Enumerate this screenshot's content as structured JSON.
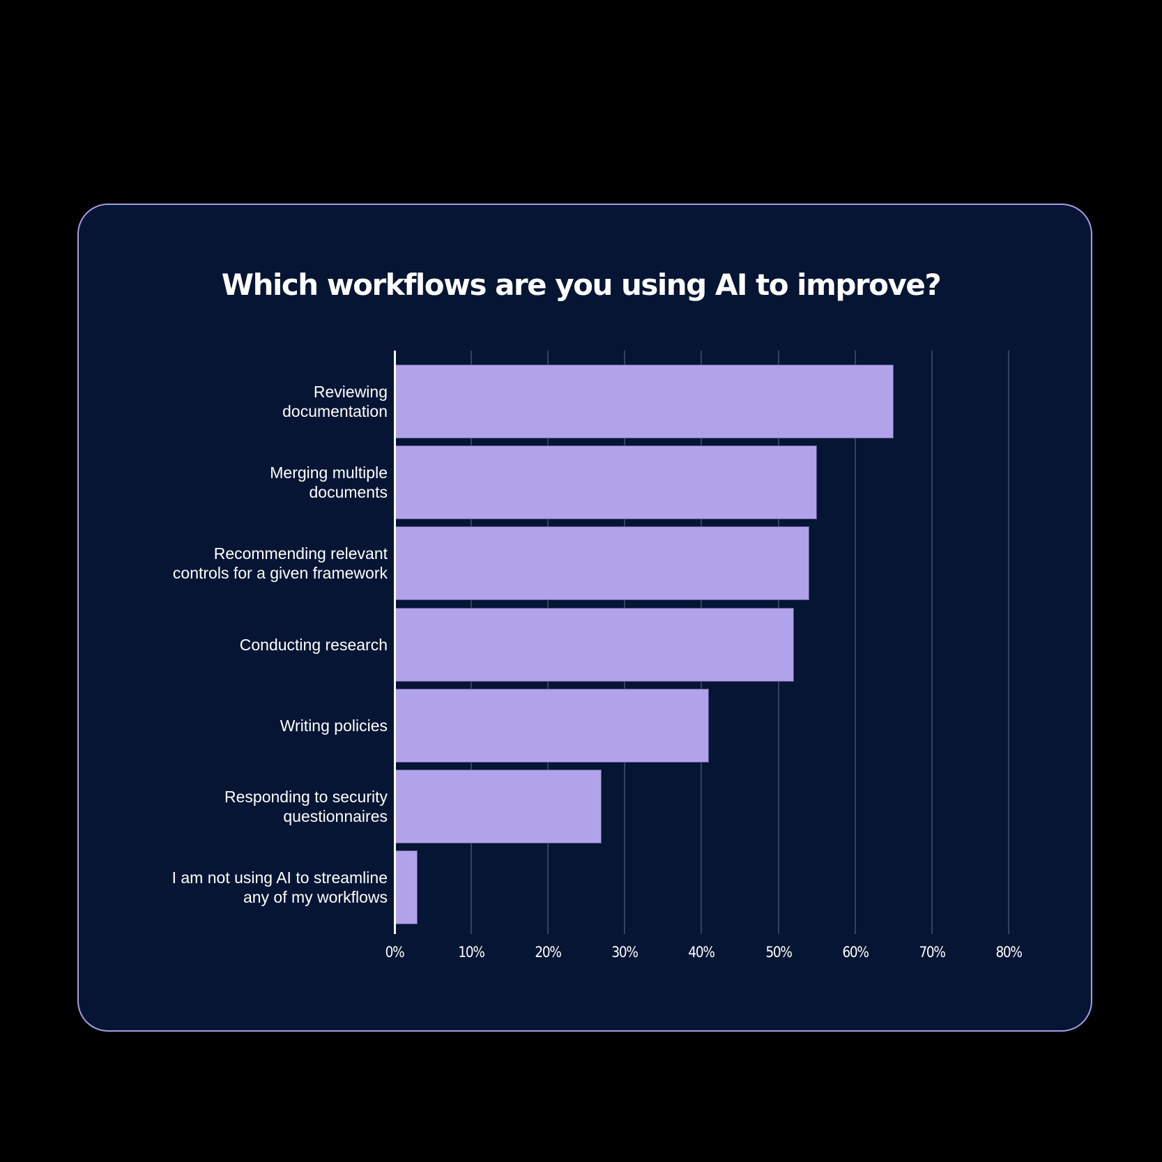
{
  "title": "Which workflows are you using AI to improve?",
  "colors": {
    "background": "#000000",
    "card": "#061533",
    "card_border": "#a99ce6",
    "bar": "#b0a3e9",
    "gridline": "#33425f",
    "text": "#ffffff"
  },
  "chart_data": {
    "type": "bar",
    "orientation": "horizontal",
    "title": "Which workflows are you using AI to improve?",
    "xlabel": "",
    "ylabel": "",
    "categories": [
      "Reviewing documentation",
      "Merging multiple documents",
      "Recommending relevant controls for a given framework",
      "Conducting research",
      "Writing policies",
      "Responding to security questionnaires",
      "I am not using AI to streamline any of my workflows"
    ],
    "category_labels_wrapped": [
      "Reviewing\ndocumentation",
      "Merging multiple\ndocuments",
      "Recommending relevant\ncontrols for a given framework",
      "Conducting research",
      "Writing policies",
      "Responding to security\nquestionnaires",
      "I am not using AI to streamline\nany of my workflows"
    ],
    "values": [
      65,
      55,
      54,
      52,
      41,
      27,
      3
    ],
    "unit": "%",
    "xlim": [
      0,
      80
    ],
    "x_ticks": [
      "0%",
      "10%",
      "20%",
      "30%",
      "40%",
      "50%",
      "60%",
      "70%",
      "80%"
    ],
    "grid": "vertical",
    "legend": "none"
  }
}
